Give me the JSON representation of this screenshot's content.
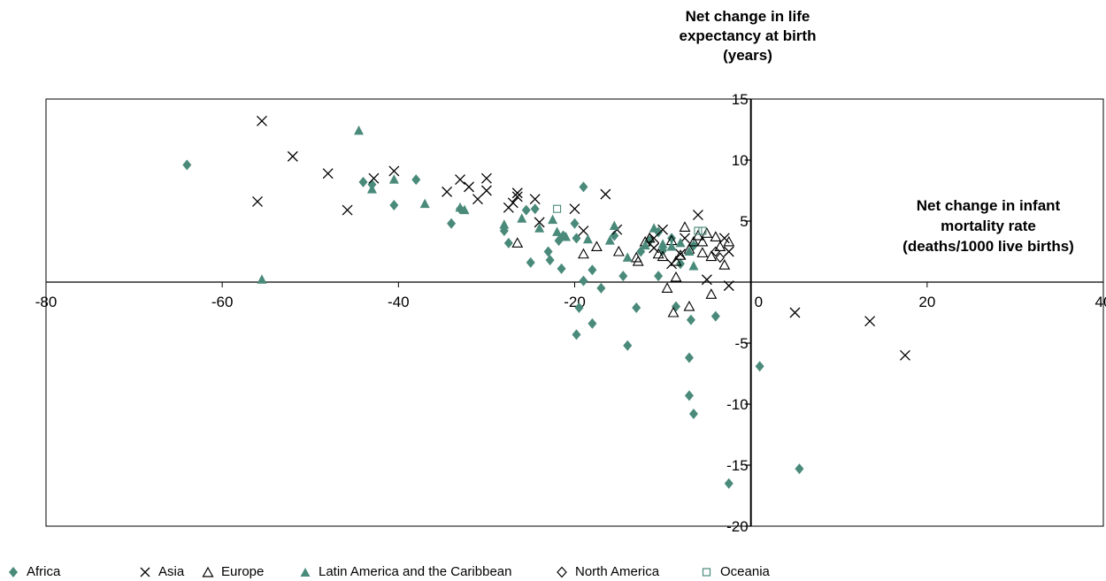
{
  "chart_data": {
    "type": "scatter",
    "ylabel_lines": [
      "Net change in life",
      "expectancy at birth",
      "(years)"
    ],
    "xlabel_lines": [
      "Net change in infant",
      "mortality rate",
      "(deaths/1000 live births)"
    ],
    "xlim": [
      -80,
      40
    ],
    "ylim": [
      -20,
      15
    ],
    "x_ticks": [
      -80,
      -60,
      -40,
      -20,
      0,
      20,
      40
    ],
    "x_tick_labels": [
      "-80",
      "-60",
      "-40",
      "-20",
      "0",
      "20",
      "40"
    ],
    "y_ticks": [
      -20,
      -15,
      -10,
      -5,
      5,
      10,
      15
    ],
    "y_tick_labels": [
      "-20",
      "-15",
      "-10",
      "-5",
      "5",
      "10",
      "15"
    ],
    "grid": false,
    "legend_position": "bottom",
    "series": [
      {
        "name": "Africa",
        "marker": "diamond-filled",
        "color": "#4a8a7a",
        "points": [
          [
            -64,
            9.6
          ],
          [
            -44,
            8.2
          ],
          [
            -43,
            8.0
          ],
          [
            -40.5,
            6.3
          ],
          [
            -38,
            8.4
          ],
          [
            -34,
            4.8
          ],
          [
            -33,
            6.0
          ],
          [
            -28,
            4.2
          ],
          [
            -27.5,
            3.2
          ],
          [
            -25.5,
            5.9
          ],
          [
            -25,
            1.6
          ],
          [
            -24.5,
            6.0
          ],
          [
            -23,
            2.5
          ],
          [
            -22.8,
            1.8
          ],
          [
            -21.8,
            3.4
          ],
          [
            -21.3,
            3.8
          ],
          [
            -21.5,
            1.1
          ],
          [
            -20,
            4.8
          ],
          [
            -19.8,
            3.6
          ],
          [
            -19,
            7.8
          ],
          [
            -19,
            0.1
          ],
          [
            -19.5,
            -2.1
          ],
          [
            -19.8,
            -4.3
          ],
          [
            -18,
            -3.4
          ],
          [
            -18,
            1.0
          ],
          [
            -17,
            -0.5
          ],
          [
            -15.5,
            3.8
          ],
          [
            -14.5,
            0.5
          ],
          [
            -14,
            -5.2
          ],
          [
            -13,
            -2.1
          ],
          [
            -12.5,
            2.5
          ],
          [
            -11.5,
            3.4
          ],
          [
            -10.5,
            0.5
          ],
          [
            -10.5,
            4.1
          ],
          [
            -10,
            2.6
          ],
          [
            -9,
            3.6
          ],
          [
            -8.5,
            -2.0
          ],
          [
            -8,
            1.5
          ],
          [
            -7,
            -6.2
          ],
          [
            -7,
            -9.3
          ],
          [
            -6.8,
            -3.1
          ],
          [
            -6.5,
            -10.8
          ],
          [
            -6.5,
            3.0
          ],
          [
            -4,
            -2.8
          ],
          [
            -2.5,
            -16.5
          ],
          [
            1,
            -6.9
          ],
          [
            5.5,
            -15.3
          ]
        ]
      },
      {
        "name": "Asia",
        "marker": "cross",
        "color": "#000000",
        "points": [
          [
            -55.5,
            13.2
          ],
          [
            -56,
            6.6
          ],
          [
            -52,
            10.3
          ],
          [
            -48,
            8.9
          ],
          [
            -45.8,
            5.9
          ],
          [
            -42.8,
            8.5
          ],
          [
            -40.5,
            9.1
          ],
          [
            -34.5,
            7.4
          ],
          [
            -33,
            8.4
          ],
          [
            -32,
            7.8
          ],
          [
            -31,
            6.8
          ],
          [
            -30,
            7.5
          ],
          [
            -30,
            8.5
          ],
          [
            -27.5,
            6.1
          ],
          [
            -27,
            6.5
          ],
          [
            -26.5,
            7.0
          ],
          [
            -26.5,
            7.3
          ],
          [
            -24.5,
            6.8
          ],
          [
            -24,
            4.9
          ],
          [
            -20,
            6.0
          ],
          [
            -19,
            4.2
          ],
          [
            -16.5,
            7.2
          ],
          [
            -15.2,
            4.3
          ],
          [
            -11,
            3.6
          ],
          [
            -10,
            4.3
          ],
          [
            -8,
            2.3
          ],
          [
            -6,
            5.5
          ],
          [
            -5,
            0.2
          ],
          [
            -3,
            3.6
          ],
          [
            -2.5,
            -0.3
          ],
          [
            -2.5,
            2.5
          ],
          [
            -11,
            2.8
          ],
          [
            -9,
            1.5
          ],
          [
            -7.5,
            3.6
          ],
          [
            5,
            -2.5
          ],
          [
            13.5,
            -3.2
          ],
          [
            17.5,
            -6.0
          ]
        ]
      },
      {
        "name": "Europe",
        "marker": "triangle-open",
        "color": "#000000",
        "points": [
          [
            -26.5,
            3.2
          ],
          [
            -19,
            2.3
          ],
          [
            -17.5,
            2.9
          ],
          [
            -15,
            2.5
          ],
          [
            -13,
            2.0
          ],
          [
            -12.8,
            1.7
          ],
          [
            -12,
            3.3
          ],
          [
            -11.5,
            3.6
          ],
          [
            -10.5,
            2.3
          ],
          [
            -10,
            2.1
          ],
          [
            -9,
            3.4
          ],
          [
            -8.5,
            1.7
          ],
          [
            -8,
            2.2
          ],
          [
            -7.5,
            4.5
          ],
          [
            -7,
            2.7
          ],
          [
            -6.5,
            3.3
          ],
          [
            -6,
            3.8
          ],
          [
            -5.5,
            3.3
          ],
          [
            -5.5,
            2.4
          ],
          [
            -5,
            4.0
          ],
          [
            -4.5,
            2.1
          ],
          [
            -4,
            3.7
          ],
          [
            -3.5,
            2.9
          ],
          [
            -3,
            1.4
          ],
          [
            -2.5,
            3.3
          ],
          [
            -7,
            -2.0
          ],
          [
            -8.8,
            -2.5
          ],
          [
            -8.5,
            0.4
          ],
          [
            -9.5,
            -0.5
          ],
          [
            -4.5,
            -1.0
          ]
        ]
      },
      {
        "name": "Latin America and the Caribbean",
        "marker": "triangle-filled",
        "color": "#4a8a7a",
        "points": [
          [
            -44.5,
            12.4
          ],
          [
            -55.5,
            0.2
          ],
          [
            -43,
            7.6
          ],
          [
            -40.5,
            8.4
          ],
          [
            -37,
            6.4
          ],
          [
            -33,
            6.1
          ],
          [
            -32.5,
            5.9
          ],
          [
            -28,
            4.7
          ],
          [
            -26,
            5.2
          ],
          [
            -24,
            4.4
          ],
          [
            -22.5,
            5.1
          ],
          [
            -22,
            4.1
          ],
          [
            -21,
            3.7
          ],
          [
            -18.5,
            3.5
          ],
          [
            -16,
            3.4
          ],
          [
            -15.5,
            4.6
          ],
          [
            -14,
            2.0
          ],
          [
            -12,
            3.0
          ],
          [
            -11,
            4.4
          ],
          [
            -10,
            3.1
          ],
          [
            -9,
            2.9
          ],
          [
            -8,
            3.2
          ],
          [
            -7,
            2.5
          ],
          [
            -6.5,
            1.3
          ]
        ]
      },
      {
        "name": "North America",
        "marker": "diamond-open",
        "color": "#000000",
        "points": [
          [
            -4,
            2.5
          ],
          [
            -3.5,
            2.0
          ]
        ]
      },
      {
        "name": "Oceania",
        "marker": "square-open",
        "color": "#4a8a7a",
        "points": [
          [
            -22,
            6.0
          ],
          [
            -6,
            4.2
          ],
          [
            -5.5,
            4.2
          ]
        ]
      }
    ]
  }
}
